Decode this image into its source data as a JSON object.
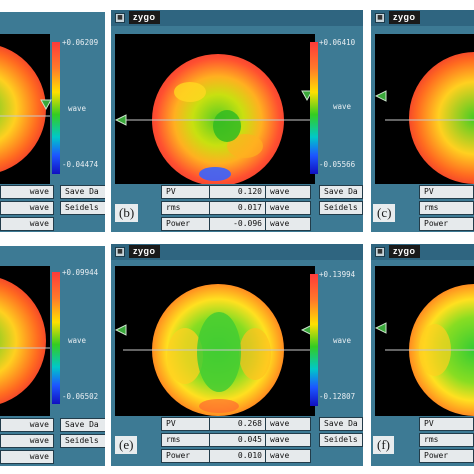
{
  "app_name": "zygo",
  "colors": {
    "window_bg": "#3d7a94",
    "titlebar": "#2f6580",
    "field_bg": "#e6eaec"
  },
  "icons": {
    "system_menu": "system-menu-icon",
    "marker": "triangle-marker-icon"
  },
  "scale_unit": "wave",
  "button_labels": {
    "save_data": "Save Da",
    "seidels": "Seidels"
  },
  "row_names": {
    "pv": "PV",
    "rms": "rms",
    "power": "Power"
  },
  "panels": [
    {
      "id": "a",
      "scale_max": "+0.06209",
      "scale_min": "-0.04474",
      "units": [
        "wave",
        "wave",
        "wave"
      ],
      "buttons": [
        "Save Da",
        "Seidels"
      ]
    },
    {
      "id": "b",
      "figure_label": "(b)",
      "scale_max": "+0.06410",
      "scale_min": "-0.05566",
      "pv": "0.120",
      "rms": "0.017",
      "power": "-0.096",
      "units": [
        "wave",
        "wave",
        "wave"
      ],
      "buttons": [
        "Save Da",
        "Seidels"
      ]
    },
    {
      "id": "c",
      "figure_label": "(c)",
      "rows": [
        "PV",
        "rms",
        "Power"
      ]
    },
    {
      "id": "d",
      "scale_max": "+0.09944",
      "scale_min": "-0.06502",
      "units": [
        "wave",
        "wave",
        "wave"
      ],
      "buttons": [
        "Save Da",
        "Seidels"
      ]
    },
    {
      "id": "e",
      "figure_label": "(e)",
      "scale_max": "+0.13994",
      "scale_min": "-0.12807",
      "pv": "0.268",
      "rms": "0.045",
      "power": "0.010",
      "units": [
        "wave",
        "wave",
        "wave"
      ],
      "buttons": [
        "Save Da",
        "Seidels"
      ]
    },
    {
      "id": "f",
      "figure_label": "(f)",
      "rows": [
        "PV",
        "rms",
        "Power"
      ]
    }
  ]
}
